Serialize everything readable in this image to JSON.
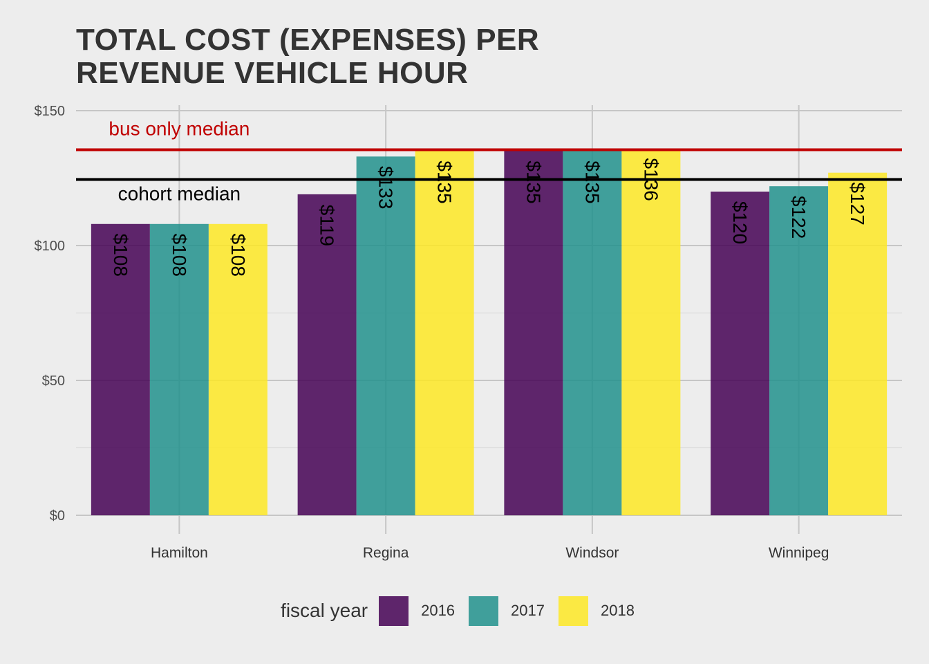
{
  "chart_data": {
    "type": "bar",
    "title": [
      "TOTAL COST (EXPENSES) PER",
      "REVENUE VEHICLE HOUR"
    ],
    "xlabel": "",
    "ylabel": "",
    "ylim": [
      0,
      150
    ],
    "yticks": [
      0,
      50,
      100,
      150
    ],
    "ytick_labels": [
      "$0",
      "$50",
      "$100",
      "$150"
    ],
    "categories": [
      "Hamilton",
      "Regina",
      "Windsor",
      "Winnipeg"
    ],
    "series": [
      {
        "name": "2016",
        "color": "#440154",
        "values": [
          108,
          119,
          135,
          120
        ],
        "labels": [
          "$108",
          "$119",
          "$135",
          "$120"
        ]
      },
      {
        "name": "2017",
        "color": "#21908c",
        "values": [
          108,
          133,
          135,
          122
        ],
        "labels": [
          "$108",
          "$133",
          "$135",
          "$122"
        ]
      },
      {
        "name": "2018",
        "color": "#fde725",
        "values": [
          108,
          135,
          136,
          127
        ],
        "labels": [
          "$108",
          "$135",
          "$136",
          "$127"
        ]
      }
    ],
    "reference_lines": [
      {
        "label": "bus only median",
        "value": 135.5,
        "color": "#c00000"
      },
      {
        "label": "cohort median",
        "value": 124.5,
        "color": "#000000"
      }
    ],
    "legend": {
      "title": "fiscal year",
      "position": "bottom"
    },
    "grid": true
  }
}
